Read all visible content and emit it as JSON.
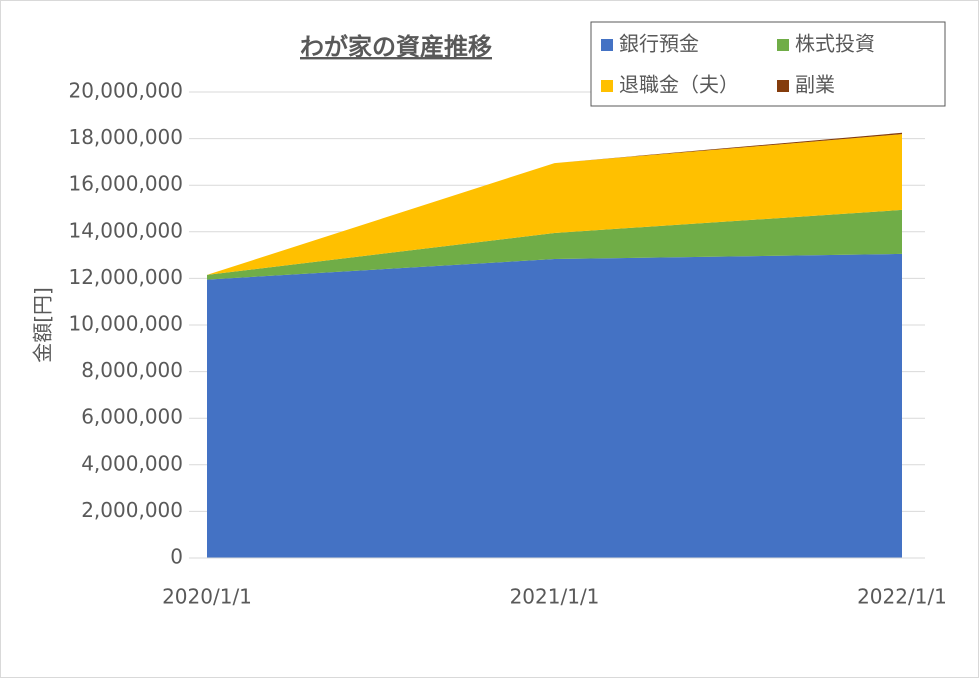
{
  "chart_data": {
    "type": "stacked-area",
    "title": "わが家の資産推移",
    "y_label": "金額[円]",
    "categories": [
      "2020/1/1",
      "2021/1/1",
      "2022/1/1"
    ],
    "series": [
      {
        "name": "銀行預金",
        "color": "#4472c4",
        "values": [
          11950000,
          12830000,
          13050000
        ]
      },
      {
        "name": "株式投資",
        "color": "#70ad47",
        "values": [
          200000,
          1120000,
          1890000
        ]
      },
      {
        "name": "退職金（夫）",
        "color": "#ffc000",
        "values": [
          0,
          3000000,
          3250000
        ]
      },
      {
        "name": "副業",
        "color": "#843c0c",
        "values": [
          0,
          0,
          60000
        ]
      }
    ],
    "ylim": [
      0,
      20000000
    ],
    "yticks": [
      0,
      {
        "value": 2000000,
        "label": "2,000,000"
      },
      {
        "value": 4000000,
        "label": "4,000,000"
      },
      {
        "value": 6000000,
        "label": "6,000,000"
      },
      {
        "value": 8000000,
        "label": "8,000,000"
      },
      {
        "value": 10000000,
        "label": "10,000,000"
      },
      {
        "value": 12000000,
        "label": "12,000,000"
      },
      {
        "value": 14000000,
        "label": "14,000,000"
      },
      {
        "value": 16000000,
        "label": "16,000,000"
      },
      {
        "value": 18000000,
        "label": "18,000,000"
      },
      {
        "value": 20000000,
        "label": "20,000,000"
      }
    ],
    "grid": true,
    "legend": "top-right"
  }
}
